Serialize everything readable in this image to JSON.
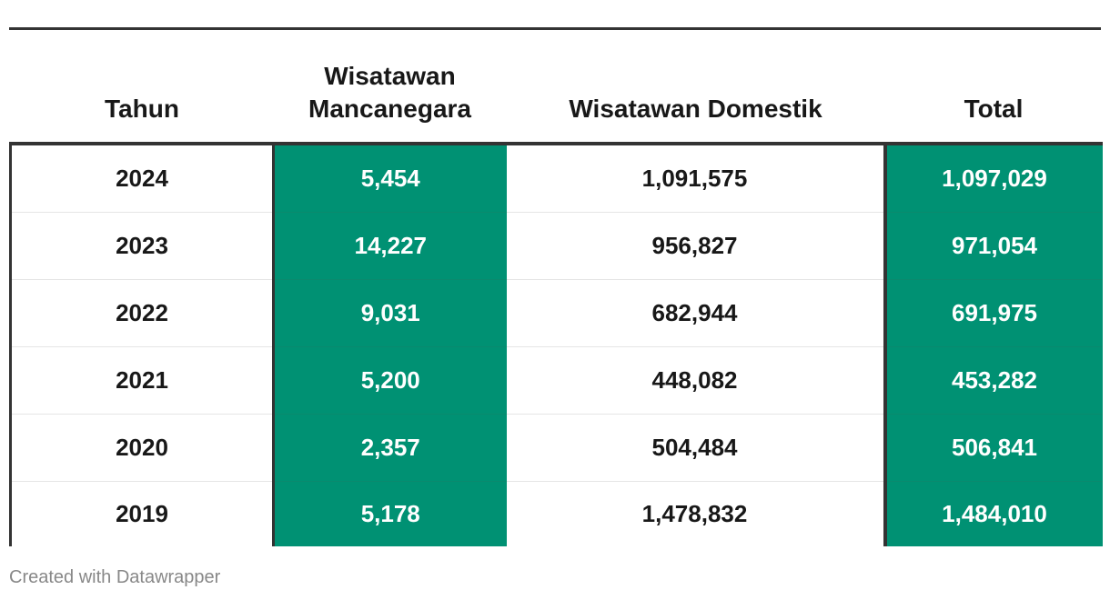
{
  "chart_data": {
    "type": "table",
    "columns": [
      "Tahun",
      "Wisatawan Mancanegara",
      "Wisatawan Domestik",
      "Total"
    ],
    "rows": [
      {
        "year": "2024",
        "foreign": "5,454",
        "domestic": "1,091,575",
        "total": "1,097,029"
      },
      {
        "year": "2023",
        "foreign": "14,227",
        "domestic": "956,827",
        "total": "971,054"
      },
      {
        "year": "2022",
        "foreign": "9,031",
        "domestic": "682,944",
        "total": "691,975"
      },
      {
        "year": "2021",
        "foreign": "5,200",
        "domestic": "448,082",
        "total": "453,282"
      },
      {
        "year": "2020",
        "foreign": "2,357",
        "domestic": "504,484",
        "total": "506,841"
      },
      {
        "year": "2019",
        "foreign": "5,178",
        "domestic": "1,478,832",
        "total": "1,484,010"
      }
    ],
    "highlight_color": "#009173"
  },
  "footer": "Created with Datawrapper"
}
